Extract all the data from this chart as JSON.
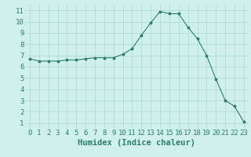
{
  "x": [
    0,
    1,
    2,
    3,
    4,
    5,
    6,
    7,
    8,
    9,
    10,
    11,
    12,
    13,
    14,
    15,
    16,
    17,
    18,
    19,
    20,
    21,
    22,
    23
  ],
  "y": [
    6.7,
    6.5,
    6.5,
    6.5,
    6.6,
    6.6,
    6.7,
    6.8,
    6.8,
    6.8,
    7.1,
    7.6,
    8.8,
    9.9,
    10.9,
    10.7,
    10.7,
    9.5,
    8.5,
    7.0,
    4.9,
    3.0,
    2.5,
    1.1
  ],
  "xlabel": "Humidex (Indice chaleur)",
  "xlim": [
    -0.5,
    23.5
  ],
  "ylim": [
    0.5,
    11.5
  ],
  "xticks": [
    0,
    1,
    2,
    3,
    4,
    5,
    6,
    7,
    8,
    9,
    10,
    11,
    12,
    13,
    14,
    15,
    16,
    17,
    18,
    19,
    20,
    21,
    22,
    23
  ],
  "yticks": [
    1,
    2,
    3,
    4,
    5,
    6,
    7,
    8,
    9,
    10,
    11
  ],
  "line_color": "#2e7d6e",
  "marker": "*",
  "bg_color": "#cff0eb",
  "grid_color": "#aad8d0",
  "xlabel_fontsize": 7.5,
  "tick_fontsize": 6.5
}
